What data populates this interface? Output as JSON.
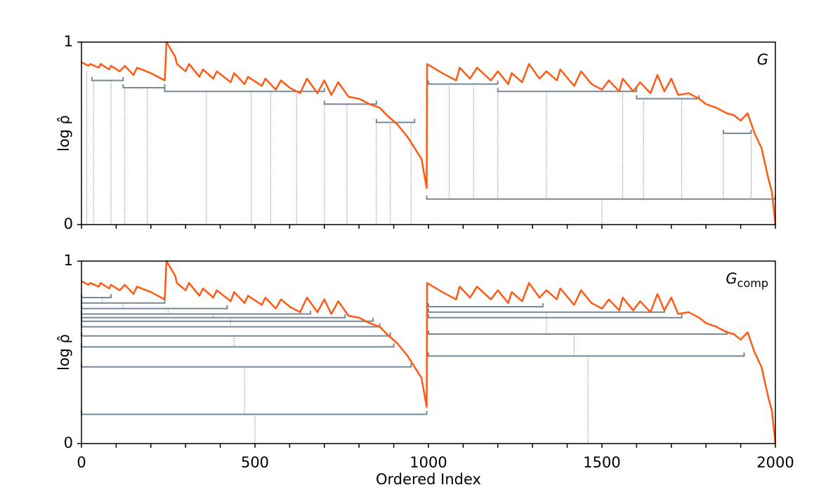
{
  "chart_data": [
    {
      "type": "line",
      "ylabel": "log ρ̂",
      "annotation": {
        "text": "G"
      },
      "xlim": [
        0,
        2000
      ],
      "ylim": [
        0,
        1
      ],
      "yticks": [
        0,
        1
      ],
      "xminorticks": [
        0,
        100,
        200,
        300,
        400,
        500,
        600,
        700,
        800,
        900,
        1000,
        1100,
        1200,
        1300,
        1400,
        1500,
        1600,
        1700,
        1800,
        1900,
        2000
      ],
      "line_color": "#ff5a14",
      "branch_color": "#778899",
      "x": [
        0,
        20,
        25,
        50,
        55,
        80,
        85,
        110,
        125,
        150,
        160,
        200,
        240,
        245,
        270,
        275,
        300,
        310,
        340,
        350,
        380,
        390,
        430,
        440,
        470,
        480,
        520,
        530,
        560,
        575,
        600,
        630,
        650,
        680,
        700,
        720,
        740,
        770,
        800,
        830,
        860,
        880,
        910,
        940,
        960,
        980,
        995,
        996,
        1040,
        1050,
        1080,
        1090,
        1120,
        1140,
        1180,
        1200,
        1230,
        1240,
        1270,
        1290,
        1320,
        1340,
        1370,
        1380,
        1420,
        1440,
        1470,
        1500,
        1520,
        1550,
        1560,
        1590,
        1610,
        1640,
        1660,
        1680,
        1700,
        1720,
        1750,
        1780,
        1800,
        1830,
        1860,
        1880,
        1900,
        1920,
        1940,
        1960,
        1980,
        1990,
        2000
      ],
      "values": [
        0.89,
        0.87,
        0.88,
        0.86,
        0.88,
        0.85,
        0.87,
        0.84,
        0.87,
        0.82,
        0.86,
        0.83,
        0.79,
        1.0,
        0.92,
        0.88,
        0.84,
        0.88,
        0.81,
        0.85,
        0.8,
        0.84,
        0.78,
        0.83,
        0.77,
        0.81,
        0.76,
        0.8,
        0.74,
        0.79,
        0.75,
        0.72,
        0.8,
        0.72,
        0.79,
        0.71,
        0.78,
        0.7,
        0.69,
        0.66,
        0.64,
        0.6,
        0.55,
        0.48,
        0.42,
        0.36,
        0.2,
        0.88,
        0.83,
        0.82,
        0.79,
        0.86,
        0.8,
        0.86,
        0.79,
        0.84,
        0.77,
        0.83,
        0.78,
        0.88,
        0.8,
        0.84,
        0.79,
        0.85,
        0.76,
        0.84,
        0.77,
        0.74,
        0.79,
        0.73,
        0.8,
        0.73,
        0.78,
        0.72,
        0.82,
        0.73,
        0.8,
        0.71,
        0.72,
        0.69,
        0.66,
        0.64,
        0.61,
        0.6,
        0.57,
        0.61,
        0.5,
        0.42,
        0.25,
        0.18,
        0.0
      ],
      "branches": [
        {
          "x": [
            30,
            120
          ],
          "level": 0.79
        },
        {
          "x": [
            120,
            240
          ],
          "level": 0.75
        },
        {
          "x": [
            240,
            700
          ],
          "level": 0.73
        },
        {
          "x": [
            700,
            850
          ],
          "level": 0.66
        },
        {
          "x": [
            850,
            960
          ],
          "level": 0.56
        },
        {
          "x": [
            1000,
            1200
          ],
          "level": 0.77
        },
        {
          "x": [
            1200,
            1600
          ],
          "level": 0.73
        },
        {
          "x": [
            1600,
            1780
          ],
          "level": 0.69
        },
        {
          "x": [
            1850,
            1930
          ],
          "level": 0.5
        },
        {
          "x": [
            995,
            2000
          ],
          "level": 0.14
        }
      ],
      "links": [
        {
          "x": 15,
          "from": 0.84,
          "to": 0
        },
        {
          "x": 35,
          "from": 0.79,
          "to": 0
        },
        {
          "x": 85,
          "from": 0.79,
          "to": 0
        },
        {
          "x": 125,
          "from": 0.75,
          "to": 0
        },
        {
          "x": 190,
          "from": 0.75,
          "to": 0
        },
        {
          "x": 360,
          "from": 0.73,
          "to": 0
        },
        {
          "x": 490,
          "from": 0.73,
          "to": 0
        },
        {
          "x": 545,
          "from": 0.73,
          "to": 0
        },
        {
          "x": 620,
          "from": 0.73,
          "to": 0
        },
        {
          "x": 700,
          "from": 0.66,
          "to": 0
        },
        {
          "x": 765,
          "from": 0.66,
          "to": 0
        },
        {
          "x": 850,
          "from": 0.56,
          "to": 0
        },
        {
          "x": 890,
          "from": 0.56,
          "to": 0
        },
        {
          "x": 950,
          "from": 0.56,
          "to": 0
        },
        {
          "x": 1060,
          "from": 0.77,
          "to": 0.14
        },
        {
          "x": 1130,
          "from": 0.77,
          "to": 0.14
        },
        {
          "x": 1200,
          "from": 0.73,
          "to": 0.14
        },
        {
          "x": 1340,
          "from": 0.73,
          "to": 0.14
        },
        {
          "x": 1560,
          "from": 0.73,
          "to": 0.14
        },
        {
          "x": 1620,
          "from": 0.69,
          "to": 0.14
        },
        {
          "x": 1730,
          "from": 0.69,
          "to": 0.14
        },
        {
          "x": 1850,
          "from": 0.5,
          "to": 0.14
        },
        {
          "x": 1930,
          "from": 0.5,
          "to": 0.14
        },
        {
          "x": 1500,
          "from": 0.14,
          "to": 0
        }
      ]
    },
    {
      "type": "line",
      "ylabel": "log ρ̂",
      "xlabel": "Ordered Index",
      "annotation": {
        "text": "G",
        "subscript": "comp"
      },
      "xlim": [
        0,
        2000
      ],
      "ylim": [
        0,
        1
      ],
      "yticks": [
        0,
        1
      ],
      "xticks": [
        0,
        500,
        1000,
        1500,
        2000
      ],
      "xminorticks": [
        100,
        200,
        300,
        400,
        600,
        700,
        800,
        900,
        1100,
        1200,
        1300,
        1400,
        1600,
        1700,
        1800,
        1900
      ],
      "line_color": "#ff5a14",
      "branch_color": "#778899",
      "x": [
        0,
        20,
        25,
        50,
        55,
        80,
        85,
        110,
        125,
        150,
        160,
        200,
        240,
        245,
        270,
        275,
        300,
        310,
        340,
        350,
        380,
        390,
        430,
        440,
        470,
        480,
        520,
        530,
        560,
        575,
        600,
        630,
        650,
        680,
        700,
        720,
        740,
        770,
        800,
        830,
        860,
        880,
        910,
        940,
        960,
        980,
        995,
        996,
        1040,
        1050,
        1080,
        1090,
        1120,
        1140,
        1180,
        1200,
        1230,
        1240,
        1270,
        1290,
        1320,
        1340,
        1370,
        1380,
        1420,
        1440,
        1470,
        1500,
        1520,
        1550,
        1560,
        1590,
        1610,
        1640,
        1660,
        1680,
        1700,
        1720,
        1750,
        1780,
        1800,
        1830,
        1860,
        1880,
        1900,
        1920,
        1940,
        1960,
        1980,
        1990,
        2000
      ],
      "values": [
        0.89,
        0.87,
        0.88,
        0.86,
        0.88,
        0.85,
        0.87,
        0.84,
        0.87,
        0.82,
        0.86,
        0.83,
        0.79,
        1.0,
        0.92,
        0.88,
        0.84,
        0.88,
        0.81,
        0.85,
        0.8,
        0.84,
        0.78,
        0.83,
        0.77,
        0.81,
        0.76,
        0.8,
        0.74,
        0.79,
        0.75,
        0.72,
        0.8,
        0.72,
        0.79,
        0.71,
        0.78,
        0.7,
        0.69,
        0.66,
        0.64,
        0.6,
        0.55,
        0.48,
        0.42,
        0.36,
        0.2,
        0.88,
        0.83,
        0.82,
        0.79,
        0.86,
        0.8,
        0.86,
        0.79,
        0.84,
        0.77,
        0.83,
        0.78,
        0.88,
        0.8,
        0.84,
        0.79,
        0.85,
        0.76,
        0.84,
        0.77,
        0.74,
        0.79,
        0.73,
        0.8,
        0.73,
        0.78,
        0.72,
        0.82,
        0.73,
        0.8,
        0.71,
        0.72,
        0.69,
        0.66,
        0.64,
        0.61,
        0.6,
        0.57,
        0.61,
        0.5,
        0.42,
        0.25,
        0.18,
        0.0
      ],
      "branches": [
        {
          "x": [
            0,
            85
          ],
          "level": 0.8
        },
        {
          "x": [
            0,
            240
          ],
          "level": 0.77
        },
        {
          "x": [
            0,
            420
          ],
          "level": 0.74
        },
        {
          "x": [
            0,
            660
          ],
          "level": 0.71
        },
        {
          "x": [
            0,
            760
          ],
          "level": 0.69
        },
        {
          "x": [
            0,
            840
          ],
          "level": 0.67
        },
        {
          "x": [
            0,
            860
          ],
          "level": 0.64
        },
        {
          "x": [
            0,
            890
          ],
          "level": 0.59
        },
        {
          "x": [
            0,
            900
          ],
          "level": 0.53
        },
        {
          "x": [
            0,
            950
          ],
          "level": 0.42
        },
        {
          "x": [
            0,
            995
          ],
          "level": 0.16
        },
        {
          "x": [
            1000,
            1330
          ],
          "level": 0.75
        },
        {
          "x": [
            1000,
            1680
          ],
          "level": 0.72
        },
        {
          "x": [
            1000,
            1730
          ],
          "level": 0.69
        },
        {
          "x": [
            1000,
            1860
          ],
          "level": 0.6
        },
        {
          "x": [
            1000,
            1910
          ],
          "level": 0.48
        }
      ],
      "links": [
        {
          "x": 60,
          "from": 0.8,
          "to": 0.77
        },
        {
          "x": 120,
          "from": 0.77,
          "to": 0.74
        },
        {
          "x": 250,
          "from": 0.74,
          "to": 0.71
        },
        {
          "x": 380,
          "from": 0.71,
          "to": 0.69
        },
        {
          "x": 430,
          "from": 0.69,
          "to": 0.64
        },
        {
          "x": 440,
          "from": 0.59,
          "to": 0.53
        },
        {
          "x": 470,
          "from": 0.42,
          "to": 0.16
        },
        {
          "x": 500,
          "from": 0.16,
          "to": 0
        },
        {
          "x": 1340,
          "from": 0.72,
          "to": 0.6
        },
        {
          "x": 1420,
          "from": 0.6,
          "to": 0.48
        },
        {
          "x": 1460,
          "from": 0.48,
          "to": 0
        }
      ]
    }
  ]
}
